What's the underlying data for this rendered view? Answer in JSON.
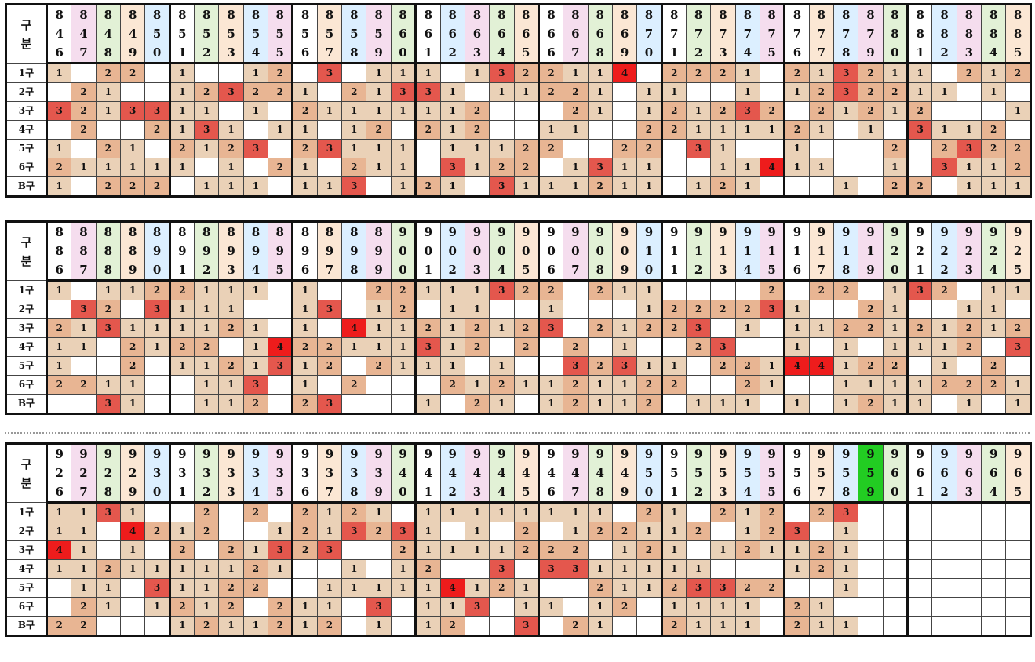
{
  "corner_label": [
    "구",
    "분"
  ],
  "row_labels": [
    "1구",
    "2구",
    "3구",
    "4구",
    "5구",
    "6구",
    "B구"
  ],
  "current_round": "959",
  "panels": [
    {
      "rounds": [
        "846",
        "847",
        "848",
        "849",
        "850",
        "851",
        "852",
        "853",
        "854",
        "855",
        "856",
        "857",
        "858",
        "859",
        "860",
        "861",
        "862",
        "863",
        "864",
        "865",
        "866",
        "867",
        "868",
        "869",
        "870",
        "871",
        "872",
        "873",
        "874",
        "875",
        "876",
        "877",
        "878",
        "879",
        "880",
        "881",
        "882",
        "883",
        "884",
        "885"
      ],
      "rows": [
        [
          "1",
          "",
          "2",
          "2",
          "",
          "1",
          "",
          "",
          "1",
          "2",
          "",
          "3",
          "",
          "1",
          "1",
          "1",
          "",
          "1",
          "3",
          "2",
          "2",
          "1",
          "1",
          "4",
          "",
          "2",
          "2",
          "2",
          "1",
          "",
          "2",
          "1",
          "3",
          "2",
          "1",
          "1",
          "",
          "2",
          "1",
          "2"
        ],
        [
          "",
          "2",
          "1",
          "",
          "",
          "1",
          "2",
          "3",
          "2",
          "2",
          "1",
          "",
          "2",
          "1",
          "3",
          "3",
          "1",
          "",
          "1",
          "1",
          "2",
          "2",
          "1",
          "",
          "1",
          "1",
          "",
          "",
          "1",
          "",
          "1",
          "2",
          "3",
          "2",
          "2",
          "1",
          "1",
          "",
          "1",
          ""
        ],
        [
          "3",
          "2",
          "1",
          "3",
          "3",
          "1",
          "1",
          "",
          "1",
          "",
          "2",
          "1",
          "1",
          "1",
          "1",
          "1",
          "1",
          "2",
          "",
          "",
          "",
          "2",
          "1",
          "",
          "1",
          "2",
          "1",
          "2",
          "3",
          "2",
          "",
          "2",
          "1",
          "2",
          "1",
          "2",
          "",
          "",
          "",
          "1"
        ],
        [
          "",
          "2",
          "",
          "",
          "2",
          "1",
          "3",
          "1",
          "",
          "1",
          "1",
          "",
          "1",
          "2",
          "",
          "2",
          "1",
          "2",
          "",
          "",
          "1",
          "1",
          "",
          "",
          "2",
          "2",
          "1",
          "1",
          "1",
          "1",
          "2",
          "1",
          "",
          "1",
          "",
          "3",
          "1",
          "1",
          "2",
          ""
        ],
        [
          "1",
          "",
          "2",
          "1",
          "",
          "2",
          "1",
          "2",
          "3",
          "",
          "2",
          "3",
          "1",
          "1",
          "1",
          "",
          "1",
          "1",
          "1",
          "2",
          "2",
          "",
          "",
          "2",
          "2",
          "",
          "3",
          "1",
          "",
          "",
          "1",
          "",
          "",
          "",
          "2",
          "",
          "2",
          "3",
          "2",
          "2"
        ],
        [
          "2",
          "1",
          "1",
          "1",
          "1",
          "1",
          "",
          "1",
          "",
          "2",
          "1",
          "",
          "2",
          "1",
          "1",
          "",
          "3",
          "1",
          "2",
          "2",
          "",
          "1",
          "3",
          "1",
          "1",
          "",
          "",
          "1",
          "1",
          "4",
          "1",
          "1",
          "",
          "",
          "1",
          "",
          "3",
          "1",
          "1",
          "2"
        ],
        [
          "1",
          "",
          "2",
          "2",
          "2",
          "",
          "1",
          "1",
          "1",
          "",
          "1",
          "1",
          "3",
          "",
          "1",
          "2",
          "1",
          "",
          "3",
          "1",
          "1",
          "1",
          "2",
          "1",
          "1",
          "",
          "1",
          "2",
          "1",
          "",
          "",
          "",
          "1",
          "",
          "2",
          "2",
          "",
          "1",
          "1",
          "1"
        ]
      ]
    },
    {
      "rounds": [
        "886",
        "887",
        "888",
        "889",
        "890",
        "891",
        "892",
        "893",
        "894",
        "895",
        "896",
        "897",
        "898",
        "899",
        "900",
        "901",
        "902",
        "903",
        "904",
        "905",
        "906",
        "907",
        "908",
        "909",
        "910",
        "911",
        "912",
        "913",
        "914",
        "915",
        "916",
        "917",
        "918",
        "919",
        "920",
        "921",
        "922",
        "923",
        "924",
        "925"
      ],
      "rows": [
        [
          "1",
          "",
          "1",
          "1",
          "2",
          "2",
          "1",
          "1",
          "1",
          "",
          "1",
          "",
          "",
          "2",
          "2",
          "1",
          "1",
          "1",
          "3",
          "2",
          "2",
          "",
          "2",
          "1",
          "1",
          "",
          "",
          "",
          "",
          "2",
          "",
          "2",
          "2",
          "",
          "1",
          "3",
          "2",
          "",
          "1",
          "1"
        ],
        [
          "",
          "3",
          "2",
          "",
          "3",
          "1",
          "1",
          "1",
          "",
          "",
          "1",
          "3",
          "",
          "1",
          "2",
          "",
          "1",
          "1",
          "",
          "",
          "1",
          "",
          "",
          "",
          "1",
          "2",
          "2",
          "2",
          "2",
          "3",
          "1",
          "",
          "",
          "2",
          "1",
          "",
          "",
          "1",
          "1",
          ""
        ],
        [
          "2",
          "1",
          "3",
          "1",
          "1",
          "1",
          "1",
          "2",
          "1",
          "",
          "1",
          "",
          "4",
          "1",
          "1",
          "2",
          "1",
          "2",
          "1",
          "2",
          "3",
          "",
          "2",
          "1",
          "2",
          "2",
          "3",
          "",
          "1",
          "",
          "1",
          "1",
          "2",
          "2",
          "1",
          "2",
          "1",
          "2",
          "1",
          "2"
        ],
        [
          "1",
          "1",
          "",
          "2",
          "1",
          "2",
          "2",
          "",
          "1",
          "4",
          "2",
          "2",
          "1",
          "1",
          "1",
          "3",
          "1",
          "2",
          "",
          "2",
          "",
          "2",
          "",
          "1",
          "",
          "",
          "2",
          "3",
          "",
          "",
          "1",
          "",
          "1",
          "",
          "1",
          "1",
          "1",
          "2",
          "",
          "3"
        ],
        [
          "1",
          "",
          "",
          "2",
          "",
          "1",
          "1",
          "2",
          "1",
          "3",
          "1",
          "2",
          "",
          "2",
          "1",
          "1",
          "1",
          "",
          "1",
          "",
          "",
          "3",
          "2",
          "3",
          "1",
          "1",
          "",
          "2",
          "2",
          "1",
          "4",
          "4",
          "1",
          "2",
          "2",
          "",
          "1",
          "",
          "2",
          ""
        ],
        [
          "2",
          "2",
          "1",
          "1",
          "",
          "",
          "1",
          "1",
          "3",
          "",
          "1",
          "",
          "2",
          "",
          "",
          "",
          "2",
          "1",
          "2",
          "1",
          "1",
          "2",
          "1",
          "1",
          "2",
          "2",
          "",
          "",
          "2",
          "1",
          "",
          "",
          "1",
          "1",
          "1",
          "1",
          "2",
          "2",
          "2",
          "1"
        ],
        [
          "",
          "",
          "3",
          "1",
          "",
          "",
          "1",
          "1",
          "2",
          "",
          "2",
          "3",
          "",
          "",
          "",
          "1",
          "",
          "2",
          "1",
          "",
          "1",
          "2",
          "1",
          "1",
          "2",
          "",
          "1",
          "1",
          "1",
          "",
          "1",
          "",
          "1",
          "2",
          "1",
          "1",
          "",
          "1",
          "",
          "1"
        ]
      ]
    },
    {
      "rounds": [
        "926",
        "927",
        "928",
        "929",
        "930",
        "931",
        "932",
        "933",
        "934",
        "935",
        "936",
        "937",
        "938",
        "939",
        "940",
        "941",
        "942",
        "943",
        "944",
        "945",
        "946",
        "947",
        "948",
        "949",
        "950",
        "951",
        "952",
        "953",
        "954",
        "955",
        "956",
        "957",
        "958",
        "959",
        "960",
        "961",
        "962",
        "963",
        "964",
        "965"
      ],
      "rows": [
        [
          "1",
          "1",
          "3",
          "1",
          "",
          "",
          "2",
          "",
          "2",
          "",
          "2",
          "1",
          "2",
          "1",
          "",
          "1",
          "1",
          "1",
          "1",
          "1",
          "1",
          "1",
          "1",
          "",
          "2",
          "1",
          "",
          "2",
          "1",
          "2",
          "",
          "2",
          "3",
          "",
          "",
          "",
          "",
          "",
          "",
          ""
        ],
        [
          "1",
          "1",
          "",
          "4",
          "2",
          "1",
          "2",
          "",
          "",
          "1",
          "2",
          "1",
          "3",
          "2",
          "3",
          "1",
          "",
          "1",
          "",
          "2",
          "",
          "1",
          "2",
          "2",
          "1",
          "1",
          "2",
          "",
          "1",
          "2",
          "3",
          "",
          "1",
          "",
          "",
          "",
          "",
          "",
          "",
          ""
        ],
        [
          "4",
          "1",
          "",
          "1",
          "",
          "2",
          "",
          "2",
          "1",
          "3",
          "2",
          "3",
          "",
          "",
          "2",
          "1",
          "1",
          "1",
          "1",
          "2",
          "2",
          "2",
          "",
          "1",
          "2",
          "1",
          "",
          "1",
          "2",
          "1",
          "1",
          "2",
          "1",
          "",
          "",
          "",
          "",
          "",
          "",
          ""
        ],
        [
          "1",
          "1",
          "2",
          "1",
          "1",
          "1",
          "1",
          "1",
          "2",
          "1",
          "",
          "",
          "1",
          "",
          "1",
          "2",
          "",
          "",
          "3",
          "",
          "3",
          "3",
          "1",
          "1",
          "1",
          "1",
          "1",
          "",
          "",
          "",
          "1",
          "2",
          "1",
          "",
          "",
          "",
          "",
          "",
          "",
          ""
        ],
        [
          "",
          "1",
          "1",
          "",
          "3",
          "1",
          "1",
          "2",
          "2",
          "",
          "",
          "1",
          "1",
          "1",
          "1",
          "1",
          "4",
          "1",
          "2",
          "1",
          "",
          "",
          "2",
          "1",
          "1",
          "2",
          "3",
          "3",
          "2",
          "2",
          "",
          "",
          "1",
          "",
          "",
          "",
          "",
          "",
          "",
          ""
        ],
        [
          "",
          "2",
          "1",
          "",
          "1",
          "2",
          "1",
          "2",
          "",
          "2",
          "1",
          "1",
          "",
          "3",
          "",
          "1",
          "1",
          "3",
          "",
          "1",
          "1",
          "",
          "1",
          "2",
          "",
          "1",
          "1",
          "1",
          "1",
          "",
          "2",
          "1",
          "",
          "",
          "",
          "",
          "",
          "",
          "",
          ""
        ],
        [
          "2",
          "2",
          "",
          "",
          "",
          "1",
          "2",
          "1",
          "1",
          "2",
          "1",
          "2",
          "",
          "1",
          "",
          "1",
          "2",
          "",
          "",
          "3",
          "",
          "2",
          "1",
          "",
          "",
          "2",
          "1",
          "1",
          "1",
          "",
          "2",
          "1",
          "1",
          "",
          "",
          "",
          "",
          "",
          "",
          ""
        ]
      ]
    }
  ]
}
